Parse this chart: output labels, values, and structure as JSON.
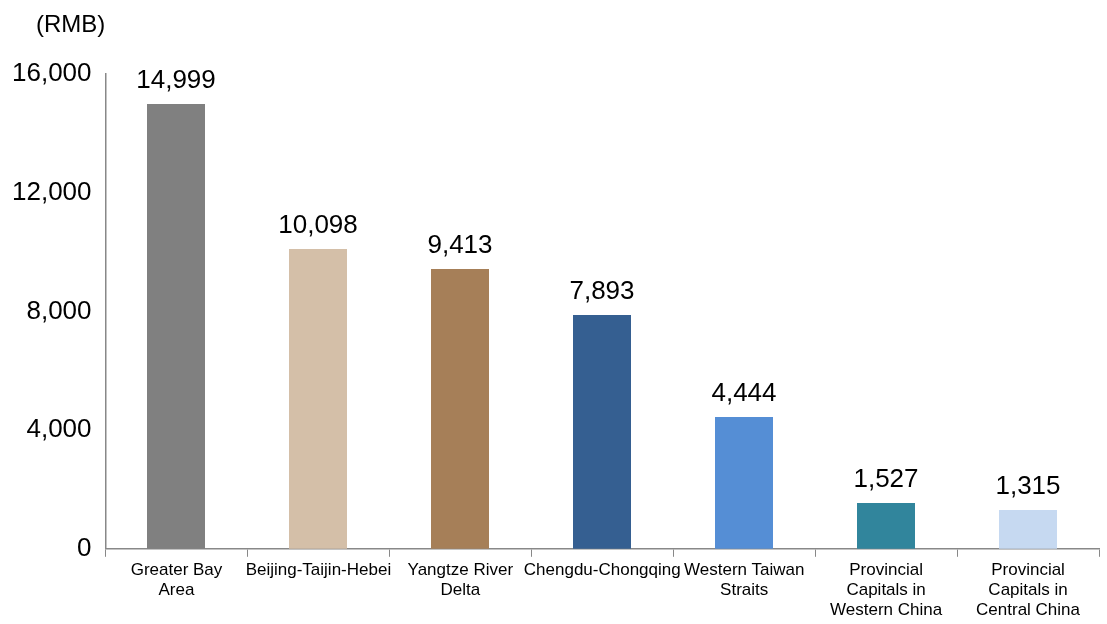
{
  "chart_data": {
    "type": "bar",
    "ylabel": "(RMB)",
    "categories": [
      "Greater Bay Area",
      "Beijing-Taijin-Hebei",
      "Yangtze River Delta",
      "Chengdu-Chongqing",
      "Western Taiwan Straits",
      "Provincial Capitals in Western China",
      "Provincial Capitals in Central China"
    ],
    "values": [
      14999,
      10098,
      9413,
      7893,
      4444,
      1527,
      1315
    ],
    "value_labels": [
      "14,999",
      "10,098",
      "9,413",
      "7,893",
      "4,444",
      "1,527",
      "1,315"
    ],
    "colors": [
      "#808080",
      "#d4bfa8",
      "#a67f58",
      "#355f91",
      "#558ed5",
      "#31859c",
      "#c6d9f1"
    ],
    "ylim": [
      0,
      16000
    ],
    "yticks": [
      {
        "value": 0,
        "label": "0"
      },
      {
        "value": 4000,
        "label": "4,000"
      },
      {
        "value": 8000,
        "label": "8,000"
      },
      {
        "value": 12000,
        "label": "12,000"
      },
      {
        "value": 16000,
        "label": "16,000"
      }
    ]
  }
}
